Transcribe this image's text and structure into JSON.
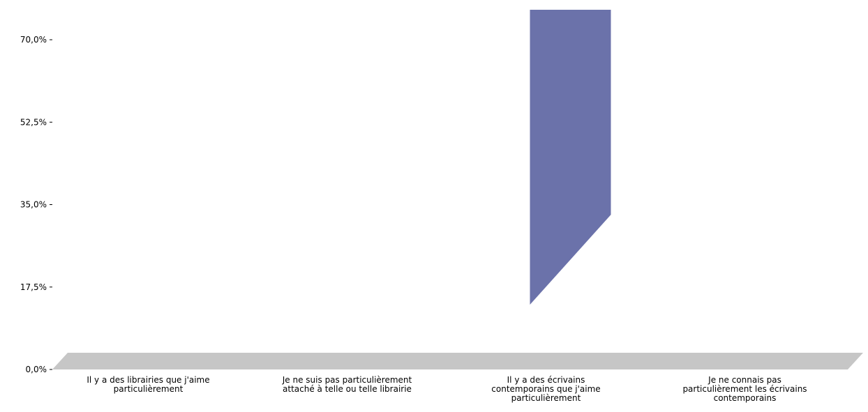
{
  "chart_data": {
    "type": "bar",
    "title": "",
    "xlabel": "",
    "ylabel": "",
    "categories": [
      [
        "Il y a des librairies que j'aime",
        "particulièrement"
      ],
      [
        "Je ne suis pas particulièrement",
        "attaché à telle ou telle librairie"
      ],
      [
        "Il y a des écrivains",
        "contemporains que j'aime",
        "particulièrement"
      ],
      [
        "Je ne connais pas",
        "particulièrement les écrivains",
        "contemporains"
      ]
    ],
    "values": [
      0,
      0,
      78,
      0
    ],
    "ylim": [
      0,
      70
    ],
    "yticks": [
      "70,0%",
      "52,5%",
      "35,0%",
      "17,5%",
      "0,0%"
    ],
    "ytick_values": [
      70,
      52.5,
      35,
      17.5,
      0
    ],
    "bar_color": "#6b72aa",
    "floor_color": "#c6c6c6"
  }
}
